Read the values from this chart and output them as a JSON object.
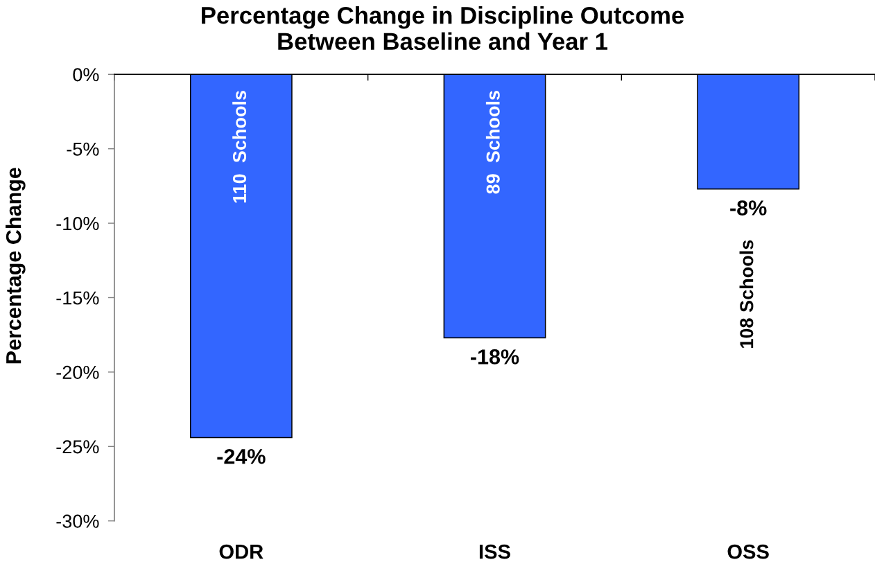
{
  "chart_data": {
    "type": "bar",
    "title": "Percentage Change in Discipline Outcome\nBetween Baseline and Year 1",
    "ylabel": "Percentage Change",
    "categories": [
      "ODR",
      "ISS",
      "OSS"
    ],
    "values": [
      -24.4,
      -17.7,
      -7.7
    ],
    "color": "#3366ff",
    "value_labels": [
      "-24%",
      "-18%",
      "-8%"
    ],
    "ylim": [
      -30,
      0
    ],
    "yticks": [
      {
        "value": -30,
        "label": "-30%"
      },
      {
        "value": -25,
        "label": "-25%"
      },
      {
        "value": -20,
        "label": "-20%"
      },
      {
        "value": -15,
        "label": "-15%"
      },
      {
        "value": -10,
        "label": "-10%"
      },
      {
        "value": -5,
        "label": "-5%"
      },
      {
        "value": 0,
        "label": "0%"
      }
    ],
    "grid": false,
    "annotations": [
      "110  Schools",
      "89  Schools",
      "108 Schools"
    ]
  }
}
